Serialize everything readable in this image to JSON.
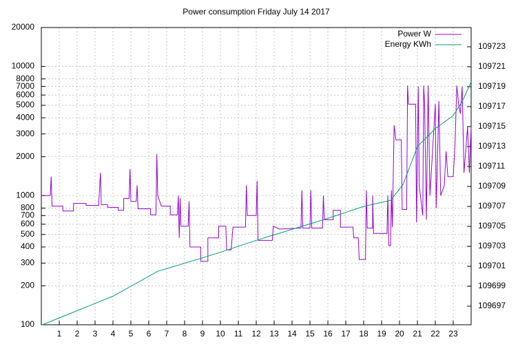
{
  "chart_data": {
    "type": "line",
    "title": "Power consumption Friday July 14 2017",
    "xlim": [
      0,
      24
    ],
    "xticks": [
      1,
      2,
      3,
      4,
      5,
      6,
      7,
      8,
      9,
      10,
      11,
      12,
      13,
      14,
      15,
      16,
      17,
      18,
      19,
      20,
      21,
      22,
      23
    ],
    "ylim": [
      100,
      20000
    ],
    "ylog": true,
    "yticks": [
      100,
      200,
      300,
      400,
      500,
      600,
      700,
      800,
      1000,
      2000,
      3000,
      4000,
      5000,
      6000,
      7000,
      8000,
      10000,
      20000
    ],
    "y2lim": [
      109695.14,
      109724.93
    ],
    "y2ticks": [
      109697,
      109699,
      109701,
      109703,
      109705,
      109707,
      109709,
      109711,
      109713,
      109715,
      109717,
      109719,
      109721,
      109723
    ],
    "grid": true,
    "legend": "top-right",
    "series": [
      {
        "name": "Power W",
        "color": "#9400d3",
        "x": [
          0,
          0.5,
          0.55,
          0.6,
          1.2,
          1.2,
          1.8,
          1.8,
          2.5,
          2.5,
          3.2,
          3.3,
          3.35,
          3.7,
          3.7,
          4.3,
          4.3,
          4.6,
          4.6,
          4.9,
          4.95,
          5.0,
          5.3,
          5.35,
          5.4,
          6.1,
          6.1,
          6.4,
          6.45,
          6.5,
          6.7,
          7.2,
          7.2,
          7.6,
          7.65,
          7.7,
          7.75,
          7.8,
          8.2,
          8.25,
          8.3,
          8.9,
          8.9,
          9.3,
          9.3,
          9.9,
          9.9,
          10.3,
          10.35,
          10.6,
          10.7,
          11.4,
          11.45,
          11.5,
          12.0,
          12.05,
          12.1,
          12.9,
          12.95,
          13.3,
          14.5,
          14.55,
          14.6,
          15.0,
          15.05,
          15.1,
          15.7,
          15.75,
          15.8,
          16.3,
          16.3,
          16.7,
          16.7,
          17.4,
          17.45,
          17.7,
          17.75,
          18.1,
          18.15,
          18.2,
          18.5,
          18.5,
          18.55,
          19.3,
          19.35,
          19.4,
          19.5,
          19.55,
          19.6,
          19.7,
          19.8,
          20.1,
          20.15,
          20.4,
          20.45,
          20.5,
          20.9,
          20.95,
          21.05,
          21.1,
          21.3,
          21.35,
          21.4,
          21.5,
          21.6,
          21.7,
          22.0,
          22.05,
          22.2,
          22.3,
          22.5,
          22.6,
          22.7,
          23.0,
          23.1,
          23.2,
          23.3,
          23.4,
          23.5,
          23.6,
          23.8,
          23.9,
          24
        ],
        "values": [
          1000,
          1000,
          1400,
          830,
          830,
          760,
          760,
          870,
          870,
          840,
          840,
          1500,
          850,
          850,
          810,
          810,
          770,
          770,
          950,
          950,
          1600,
          900,
          900,
          1200,
          790,
          790,
          710,
          710,
          2100,
          1000,
          830,
          830,
          710,
          710,
          1000,
          470,
          950,
          580,
          580,
          900,
          400,
          400,
          310,
          310,
          470,
          470,
          580,
          580,
          380,
          380,
          570,
          570,
          1200,
          700,
          700,
          1300,
          450,
          450,
          580,
          550,
          560,
          1100,
          560,
          560,
          1100,
          560,
          560,
          1000,
          650,
          650,
          770,
          770,
          570,
          570,
          470,
          470,
          320,
          320,
          1100,
          560,
          560,
          1000,
          510,
          510,
          1000,
          410,
          410,
          1100,
          570,
          3500,
          2700,
          2700,
          780,
          780,
          7100,
          5100,
          5100,
          620,
          7000,
          1200,
          700,
          7100,
          5200,
          650,
          7100,
          1000,
          5100,
          800,
          5400,
          1000,
          1200,
          2200,
          1400,
          1400,
          2500,
          7100,
          5100,
          4300,
          7000,
          1500,
          3400,
          1500,
          3400
        ]
      },
      {
        "name": "Energy KWh",
        "color": "#009e73",
        "axis": "y2",
        "x": [
          0,
          4,
          6.5,
          8,
          10,
          12,
          14,
          16,
          18,
          19.5,
          20.2,
          21,
          22,
          23,
          23.5,
          24
        ],
        "values": [
          109695.1,
          109698.0,
          109700.5,
          109701.3,
          109702.4,
          109703.6,
          109704.7,
          109705.8,
          109707.0,
          109707.6,
          109709.2,
          109713.0,
          109714.8,
          109716.1,
          109717.5,
          109719.5
        ]
      }
    ]
  }
}
